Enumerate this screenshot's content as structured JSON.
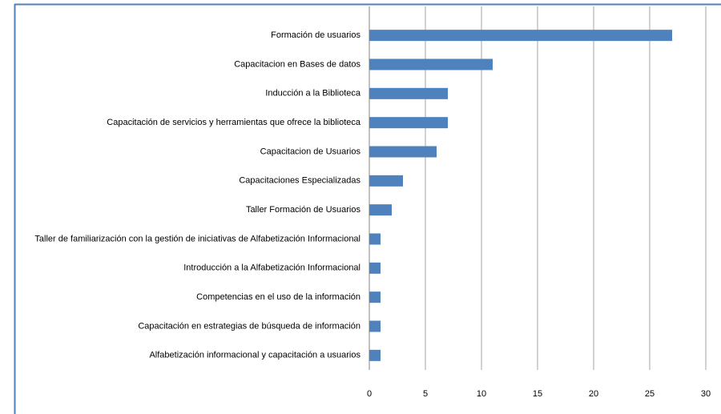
{
  "chart_data": {
    "type": "bar",
    "orientation": "horizontal",
    "categories": [
      "Formación de usuarios",
      "Capacitacion en Bases de datos",
      "Inducción a la Biblioteca",
      "Capacitación de servicios y herramientas que ofrece la biblioteca",
      "Capacitacion de Usuarios",
      "Capacitaciones Especializadas",
      "Taller Formación de Usuarios",
      "Taller de familiarización  con la gestión de iniciativas de Alfabetización Informacional",
      "Introducción a la Alfabetización Informacional",
      "Competencias en el uso de la información",
      "Capacitación en estrategias de búsqueda de información",
      "Alfabetización informacional y capacitación a usuarios"
    ],
    "values": [
      27,
      11,
      7,
      7,
      6,
      3,
      2,
      1,
      1,
      1,
      1,
      1
    ],
    "color": "#4f81bd",
    "xlim": [
      0,
      30
    ],
    "xticks": [
      0,
      5,
      10,
      15,
      20,
      25,
      30
    ],
    "grid": true
  }
}
